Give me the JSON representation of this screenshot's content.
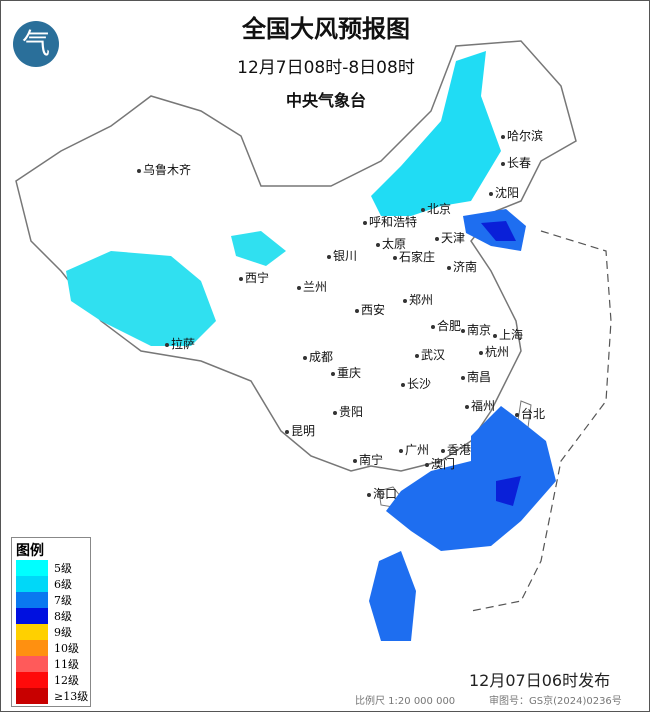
{
  "header": {
    "title": "全国大风预报图",
    "period": "12月7日08时-8日08时",
    "issuer": "中央气象台"
  },
  "cities": [
    "哈尔滨",
    "长春",
    "沈阳",
    "乌鲁木齐",
    "呼和浩特",
    "北京",
    "天津",
    "太原",
    "石家庄",
    "济南",
    "银川",
    "西宁",
    "兰州",
    "西安",
    "郑州",
    "合肥",
    "南京",
    "上海",
    "杭州",
    "拉萨",
    "成都",
    "重庆",
    "武汉",
    "南昌",
    "长沙",
    "贵阳",
    "福州",
    "台北",
    "昆明",
    "南宁",
    "广州",
    "香港",
    "澳门",
    "海口"
  ],
  "legend": {
    "title": "图例",
    "items": [
      {
        "label": "5级",
        "color": "#00ffff"
      },
      {
        "label": "6级",
        "color": "#00d8f8"
      },
      {
        "label": "7级",
        "color": "#0a78f0"
      },
      {
        "label": "8级",
        "color": "#0010e0"
      },
      {
        "label": "9级",
        "color": "#ffd000"
      },
      {
        "label": "10级",
        "color": "#ff9010"
      },
      {
        "label": "11级",
        "color": "#ff5a5a"
      },
      {
        "label": "12级",
        "color": "#ff0a0a"
      },
      {
        "label": "≥13级",
        "color": "#c80000"
      }
    ]
  },
  "footer": {
    "published": "12月07日06时发布",
    "scale": "比例尺  1:20 000 000",
    "approval": "审图号：GS京(2024)0236号"
  }
}
